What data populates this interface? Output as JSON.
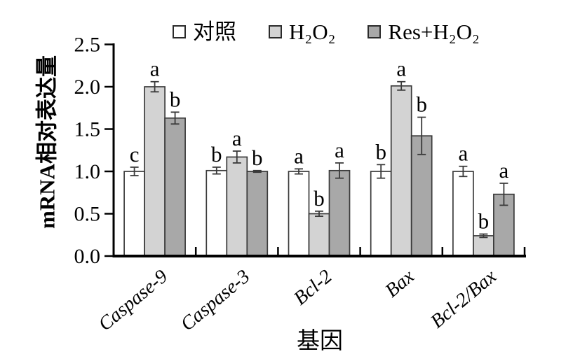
{
  "chart_data": {
    "type": "bar",
    "title": "",
    "xlabel": "基因",
    "ylabel": "mRNA相对表达量",
    "ylim": [
      0,
      2.5
    ],
    "yticks": [
      0.0,
      0.5,
      1.0,
      1.5,
      2.0,
      2.5
    ],
    "ytick_labels": [
      "0.0",
      "0.5",
      "1.0",
      "1.5",
      "2.0",
      "2.5"
    ],
    "categories": [
      "Caspase-9",
      "Caspase-3",
      "Bcl-2",
      "Bax",
      "Bcl-2/Bax"
    ],
    "grid": false,
    "legend_position": "top",
    "axis_color": "#000000",
    "bar_outline_color": "#3a3a3a",
    "error_bar_color": "#3a3a3a",
    "series": [
      {
        "name": "对照",
        "color": "#ffffff",
        "values": [
          1.0,
          1.01,
          1.0,
          1.0,
          1.0
        ],
        "errors": [
          0.05,
          0.04,
          0.03,
          0.08,
          0.06
        ],
        "letters": [
          "c",
          "b",
          "a",
          "b",
          "a"
        ]
      },
      {
        "name": "H₂O₂",
        "color": "#d3d3d3",
        "values": [
          2.0,
          1.17,
          0.5,
          2.01,
          0.24
        ],
        "errors": [
          0.06,
          0.07,
          0.03,
          0.05,
          0.02
        ],
        "letters": [
          "a",
          "a",
          "b",
          "a",
          "b"
        ]
      },
      {
        "name": "Res+H₂O₂",
        "color": "#a8a8a8",
        "values": [
          1.63,
          1.0,
          1.01,
          1.42,
          0.73
        ],
        "errors": [
          0.07,
          0.01,
          0.09,
          0.22,
          0.13
        ],
        "letters": [
          "b",
          "b",
          "a",
          "b",
          "a"
        ]
      }
    ]
  }
}
